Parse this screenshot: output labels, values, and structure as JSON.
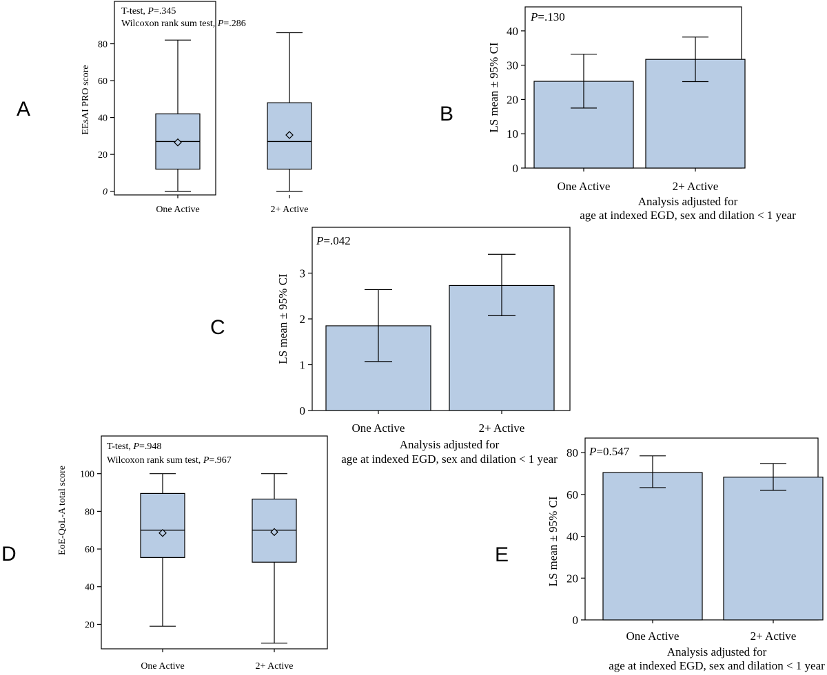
{
  "panel_labels": {
    "A": "A",
    "B": "B",
    "C": "C",
    "D": "D",
    "E": "E"
  },
  "colors": {
    "fill": "#b8cce4",
    "stroke": "#000000"
  },
  "chart_data": [
    {
      "id": "A",
      "type": "box",
      "categories": [
        "One Active",
        "2+ Active"
      ],
      "boxes": [
        {
          "min": 0,
          "q1": 12,
          "median": 27,
          "q3": 42,
          "max": 82,
          "mean": 26.5
        },
        {
          "min": 0,
          "q1": 12,
          "median": 27,
          "q3": 48,
          "max": 86,
          "mean": 30.5
        }
      ],
      "ylabel": "EEsAI PRO score",
      "ylim": [
        -2,
        103
      ],
      "yticks": [
        0,
        20,
        40,
        60,
        80
      ],
      "annotations": [
        {
          "prefix": "T-test, ",
          "p": "P",
          "suffix": "=.345"
        },
        {
          "prefix": "Wilcoxon rank sum test, ",
          "p": "P",
          "suffix": "=.286"
        }
      ]
    },
    {
      "id": "B",
      "type": "bar",
      "categories": [
        "One Active",
        "2+ Active"
      ],
      "values": [
        25.3,
        31.7
      ],
      "ci": [
        [
          17.5,
          33.2
        ],
        [
          25.2,
          38.2
        ]
      ],
      "ylabel": "LS mean ± 95% CI",
      "ylim": [
        0,
        47
      ],
      "yticks": [
        0,
        10,
        20,
        30,
        40
      ],
      "annotation": {
        "p": "P",
        "suffix": "=.130"
      },
      "xlabel": [
        "Analysis adjusted for",
        "age at indexed EGD, sex and dilation < 1 year"
      ]
    },
    {
      "id": "C",
      "type": "bar",
      "categories": [
        "One Active",
        "2+ Active"
      ],
      "values": [
        1.85,
        2.73
      ],
      "ci": [
        [
          1.07,
          2.64
        ],
        [
          2.07,
          3.41
        ]
      ],
      "ylabel": "LS mean ± 95% CI",
      "ylim": [
        0,
        4.0
      ],
      "yticks": [
        0,
        1,
        2,
        3
      ],
      "annotation": {
        "p": "P",
        "suffix": "=.042"
      },
      "xlabel": [
        "Analysis adjusted for",
        "age at indexed EGD, sex and dilation < 1 year"
      ]
    },
    {
      "id": "D",
      "type": "box",
      "categories": [
        "One Active",
        "2+ Active"
      ],
      "boxes": [
        {
          "min": 19,
          "q1": 55.5,
          "median": 70,
          "q3": 89.5,
          "max": 100,
          "mean": 68.5
        },
        {
          "min": 10,
          "q1": 53,
          "median": 70,
          "q3": 86.5,
          "max": 100,
          "mean": 69
        }
      ],
      "ylabel": "EoE-QoL-A total score",
      "ylim": [
        7,
        120
      ],
      "yticks": [
        20,
        40,
        60,
        80,
        100
      ],
      "annotations": [
        {
          "prefix": "T-test, ",
          "p": "P",
          "suffix": "=.948"
        },
        {
          "prefix": "Wilcoxon rank sum test, ",
          "p": "P",
          "suffix": "=.967"
        }
      ]
    },
    {
      "id": "E",
      "type": "bar",
      "categories": [
        "One Active",
        "2+ Active"
      ],
      "values": [
        70.5,
        68.3
      ],
      "ci": [
        [
          63.3,
          78.5
        ],
        [
          62,
          74.8
        ]
      ],
      "ylabel": "LS mean ± 95% CI",
      "ylim": [
        0,
        87
      ],
      "yticks": [
        0,
        20,
        40,
        60,
        80
      ],
      "annotation": {
        "p": "P",
        "suffix": "=0.547"
      },
      "xlabel": [
        "Analysis adjusted for",
        "age at indexed EGD, sex and dilation < 1 year"
      ]
    }
  ]
}
